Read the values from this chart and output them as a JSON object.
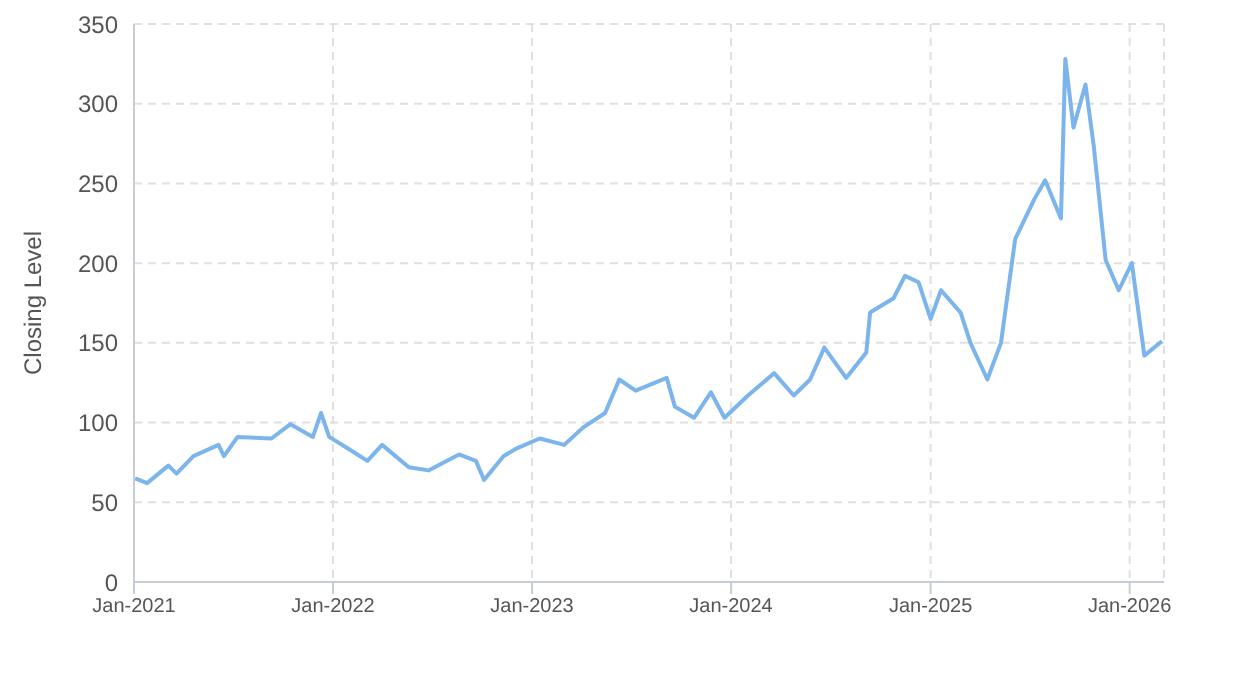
{
  "chart_data": {
    "type": "line",
    "ylabel": "Closing Level",
    "x": [
      "2021-01-03",
      "2021-01-25",
      "2021-03-05",
      "2021-03-20",
      "2021-04-20",
      "2021-06-05",
      "2021-06-15",
      "2021-07-10",
      "2021-09-10",
      "2021-10-15",
      "2021-11-25",
      "2021-12-10",
      "2021-12-25",
      "2022-02-01",
      "2022-03-05",
      "2022-04-01",
      "2022-05-20",
      "2022-06-25",
      "2022-08-20",
      "2022-09-20",
      "2022-10-05",
      "2022-11-10",
      "2022-12-05",
      "2023-01-15",
      "2023-03-01",
      "2023-04-05",
      "2023-05-15",
      "2023-06-10",
      "2023-07-10",
      "2023-09-05",
      "2023-09-20",
      "2023-10-25",
      "2023-11-25",
      "2023-12-20",
      "2024-02-01",
      "2024-03-20",
      "2024-04-25",
      "2024-05-25",
      "2024-06-20",
      "2024-07-30",
      "2024-09-05",
      "2024-09-12",
      "2024-10-25",
      "2024-11-15",
      "2024-12-10",
      "2025-01-01",
      "2025-01-20",
      "2025-02-25",
      "2025-03-15",
      "2025-04-15",
      "2025-05-10",
      "2025-06-05",
      "2025-07-10",
      "2025-07-30",
      "2025-08-28",
      "2025-09-05",
      "2025-09-20",
      "2025-10-12",
      "2025-10-27",
      "2025-11-18",
      "2025-12-12",
      "2026-01-05",
      "2026-01-28",
      "2026-03-01"
    ],
    "series": [
      {
        "color": "#7cb5ec",
        "values": [
          65,
          62,
          73,
          68,
          79,
          86,
          79,
          91,
          90,
          99,
          91,
          106,
          91,
          83,
          76,
          86,
          72,
          70,
          80,
          76,
          64,
          79,
          84,
          90,
          86,
          97,
          106,
          127,
          120,
          128,
          110,
          103,
          119,
          103,
          117,
          131,
          117,
          127,
          147,
          128,
          144,
          169,
          178,
          192,
          188,
          165,
          183,
          169,
          150,
          127,
          150,
          215,
          240,
          252,
          228,
          328,
          285,
          312,
          274,
          202,
          183,
          200,
          142,
          151
        ]
      }
    ],
    "xlim": [
      "2021-01-01",
      "2026-03-05"
    ],
    "xticks": [
      {
        "value": "2021-01-01",
        "label": "Jan-2021"
      },
      {
        "value": "2022-01-01",
        "label": "Jan-2022"
      },
      {
        "value": "2023-01-01",
        "label": "Jan-2023"
      },
      {
        "value": "2024-01-01",
        "label": "Jan-2024"
      },
      {
        "value": "2025-01-01",
        "label": "Jan-2025"
      },
      {
        "value": "2026-01-01",
        "label": "Jan-2026"
      }
    ],
    "ylim": [
      0,
      350
    ],
    "yticks": [
      0,
      50,
      100,
      150,
      200,
      250,
      300,
      350
    ],
    "grid": true,
    "legend": false,
    "marker": "none",
    "line_style": "solid"
  }
}
